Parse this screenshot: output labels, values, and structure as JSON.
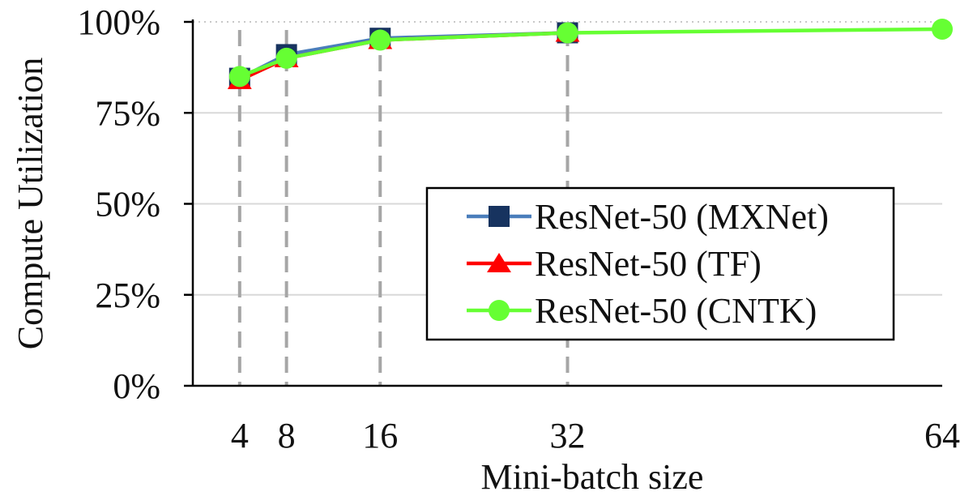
{
  "chart_data": {
    "type": "line",
    "xlabel": "Mini-batch size",
    "ylabel": "Compute Utilization",
    "x": [
      4,
      8,
      16,
      32,
      64
    ],
    "xticks": [
      "4",
      "8",
      "16",
      "32",
      "64"
    ],
    "yticks": [
      "0%",
      "25%",
      "50%",
      "75%",
      "100%"
    ],
    "xlim": [
      0,
      64
    ],
    "ylim": [
      0,
      100
    ],
    "legend_position": "bottom-right",
    "grid": "horizontal",
    "reference_lines": "vertical dashed lines at x = 4, 8, 16, 32",
    "series": [
      {
        "name": "ResNet-50 (MXNet)",
        "marker": "square",
        "color": "#17335F",
        "line_color": "#4A7EBB",
        "x": [
          4,
          8,
          16,
          32
        ],
        "values": [
          84.5,
          91,
          95.5,
          97
        ]
      },
      {
        "name": "ResNet-50 (TF)",
        "marker": "triangle",
        "color": "#FF0000",
        "line_color": "#FF0000",
        "x": [
          4,
          8,
          16,
          32
        ],
        "values": [
          84,
          90,
          95,
          97
        ]
      },
      {
        "name": "ResNet-50 (CNTK)",
        "marker": "circle",
        "color": "#66FF33",
        "line_color": "#66FF33",
        "x": [
          4,
          8,
          16,
          32,
          64
        ],
        "values": [
          85,
          90,
          95,
          97,
          98
        ]
      }
    ]
  }
}
